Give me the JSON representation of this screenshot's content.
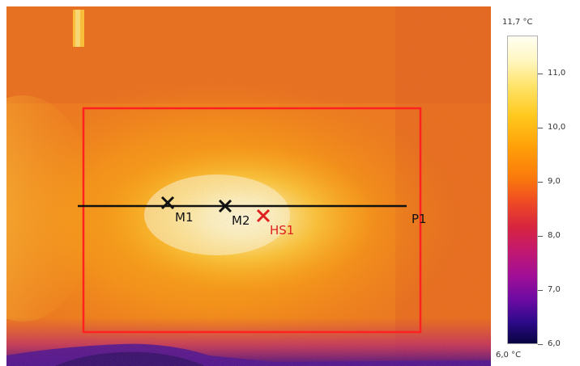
{
  "scale": {
    "max_label": "11,7 °C",
    "min_label": "6,0 °C",
    "min_value": 6.0,
    "max_value": 11.7,
    "ticks": [
      {
        "value": 11.0,
        "label": "11,0"
      },
      {
        "value": 10.0,
        "label": "10,0"
      },
      {
        "value": 9.0,
        "label": "9,0"
      },
      {
        "value": 8.0,
        "label": "8,0"
      },
      {
        "value": 7.0,
        "label": "7,0"
      },
      {
        "value": 6.0,
        "label": "6,0"
      }
    ],
    "palette": "iron"
  },
  "markers": {
    "m1": {
      "label": "M1",
      "color": "#111111"
    },
    "m2": {
      "label": "M2",
      "color": "#111111"
    },
    "hs1": {
      "label": "HS1",
      "color": "#e02020"
    },
    "p1": {
      "label": "P1",
      "color": "#111111"
    }
  },
  "area_box": {
    "color": "#ff2020"
  }
}
